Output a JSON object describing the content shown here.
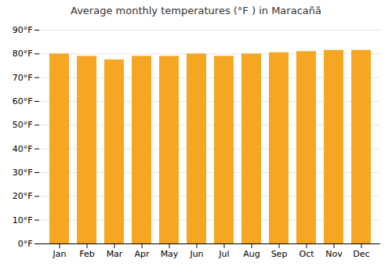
{
  "chart_data": {
    "type": "bar",
    "title": "Average monthly temperatures (°F ) in Maracañã",
    "categories": [
      "Jan",
      "Feb",
      "Mar",
      "Apr",
      "May",
      "Jun",
      "Jul",
      "Aug",
      "Sep",
      "Oct",
      "Nov",
      "Dec"
    ],
    "values": [
      80.0,
      79.0,
      77.5,
      79.0,
      79.0,
      80.0,
      79.0,
      80.0,
      80.5,
      81.0,
      81.5,
      81.5
    ],
    "color": "#F5A623",
    "ylim": [
      0,
      90
    ],
    "yticks": [
      {
        "value": 0,
        "label": "0°F"
      },
      {
        "value": 10,
        "label": "10°F"
      },
      {
        "value": 20,
        "label": "20°F"
      },
      {
        "value": 30,
        "label": "30°F"
      },
      {
        "value": 40,
        "label": "40°F"
      },
      {
        "value": 50,
        "label": "50°F"
      },
      {
        "value": 60,
        "label": "60°F"
      },
      {
        "value": 70,
        "label": "70°F"
      },
      {
        "value": 80,
        "label": "80°F"
      },
      {
        "value": 90,
        "label": "90°F"
      }
    ],
    "grid": true
  }
}
